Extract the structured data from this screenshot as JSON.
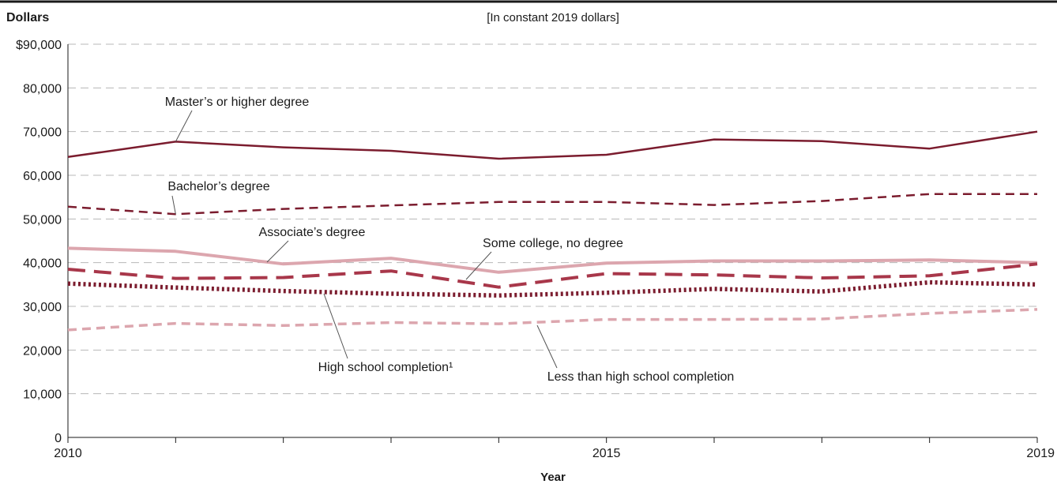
{
  "chart_data": {
    "type": "line",
    "ylabel": "Dollars",
    "subtitle": "[In constant 2019 dollars]",
    "xlabel": "Year",
    "x": [
      2010,
      2011,
      2012,
      2013,
      2014,
      2015,
      2016,
      2017,
      2018,
      2019
    ],
    "x_tick_labels": [
      "2010",
      "2015",
      "2019"
    ],
    "y_tick_labels": [
      "$90,000",
      "80,000",
      "70,000",
      "60,000",
      "50,000",
      "40,000",
      "30,000",
      "20,000",
      "10,000",
      "0"
    ],
    "ylim": [
      0,
      90000
    ],
    "grid": "horizontal dashed",
    "series": [
      {
        "name": "Master’s or higher degree",
        "style": "solid",
        "color": "#7b1c2e",
        "values": [
          64200,
          67700,
          66400,
          65600,
          63800,
          64700,
          68200,
          67800,
          66100,
          70000
        ]
      },
      {
        "name": "Bachelor’s degree",
        "style": "dashed",
        "color": "#7b1c2e",
        "values": [
          52800,
          51100,
          52300,
          53100,
          53900,
          53900,
          53200,
          54100,
          55700,
          55700
        ]
      },
      {
        "name": "Associate’s degree",
        "style": "solid",
        "color": "#dca6ae",
        "values": [
          43300,
          42600,
          39700,
          41000,
          37800,
          39900,
          40400,
          40400,
          40600,
          40000
        ]
      },
      {
        "name": "Some college, no degree",
        "style": "long-dashed",
        "color": "#a8374a",
        "values": [
          38500,
          36400,
          36600,
          38100,
          34400,
          37500,
          37200,
          36500,
          37000,
          39700
        ]
      },
      {
        "name": "High school completion¹",
        "style": "dotted",
        "color": "#7b1c2e",
        "values": [
          35200,
          34300,
          33500,
          32900,
          32500,
          33100,
          34000,
          33400,
          35500,
          35000
        ]
      },
      {
        "name": "Less than high school completion",
        "style": "dashed",
        "color": "#dca6ae",
        "values": [
          24600,
          26100,
          25600,
          26300,
          26000,
          27000,
          27000,
          27100,
          28400,
          29300
        ]
      }
    ]
  }
}
